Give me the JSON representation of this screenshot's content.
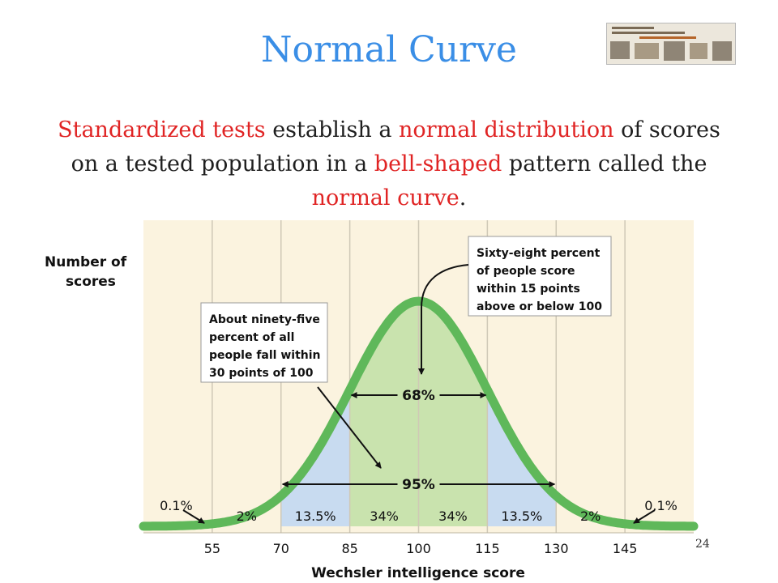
{
  "slide": {
    "title": "Normal Curve",
    "subtitle_parts": [
      {
        "text": "Standardized tests",
        "highlight": true
      },
      {
        "text": " establish a ",
        "highlight": false
      },
      {
        "text": "normal distribution",
        "highlight": true
      },
      {
        "text": " of scores on a tested population in a ",
        "highlight": false
      },
      {
        "text": "bell-shaped",
        "highlight": true
      },
      {
        "text": " pattern called the ",
        "highlight": false
      },
      {
        "text": "normal curve",
        "highlight": true
      },
      {
        "text": ".",
        "highlight": false
      }
    ],
    "page_number": "24",
    "colors": {
      "title": "#3a8ee6",
      "highlight": "#e02424",
      "text": "#1f1f1f"
    }
  },
  "chart_data": {
    "type": "area",
    "xlabel": "Wechsler intelligence score",
    "ylabel_lines": [
      "Number of",
      "scores"
    ],
    "x_ticks": [
      55,
      70,
      85,
      100,
      115,
      130,
      145
    ],
    "xlim": [
      40,
      160
    ],
    "distribution": {
      "mean": 100,
      "sd": 15
    },
    "regions": [
      {
        "from": 40,
        "to": 55,
        "label": "0.1%"
      },
      {
        "from": 55,
        "to": 70,
        "label": "2%"
      },
      {
        "from": 70,
        "to": 85,
        "label": "13.5%"
      },
      {
        "from": 85,
        "to": 100,
        "label": "34%"
      },
      {
        "from": 100,
        "to": 115,
        "label": "34%"
      },
      {
        "from": 115,
        "to": 130,
        "label": "13.5%"
      },
      {
        "from": 130,
        "to": 145,
        "label": "2%"
      },
      {
        "from": 145,
        "to": 160,
        "label": "0.1%"
      }
    ],
    "ranges": [
      {
        "from": 85,
        "to": 115,
        "label": "68%"
      },
      {
        "from": 70,
        "to": 130,
        "label": "95%"
      }
    ],
    "annotations": [
      {
        "lines": [
          "Sixty-eight percent",
          "of people score",
          "within 15 points",
          "above or below 100"
        ]
      },
      {
        "lines": [
          "About ninety-five",
          "percent of all",
          "people fall within",
          "30 points of 100"
        ]
      }
    ],
    "colors": {
      "curve": "#5fb85a",
      "center_fill": "#c9e3ae",
      "side_fill": "#c8dbf0",
      "background": "#fbf3df",
      "gridline": "#cfc8b6"
    }
  }
}
